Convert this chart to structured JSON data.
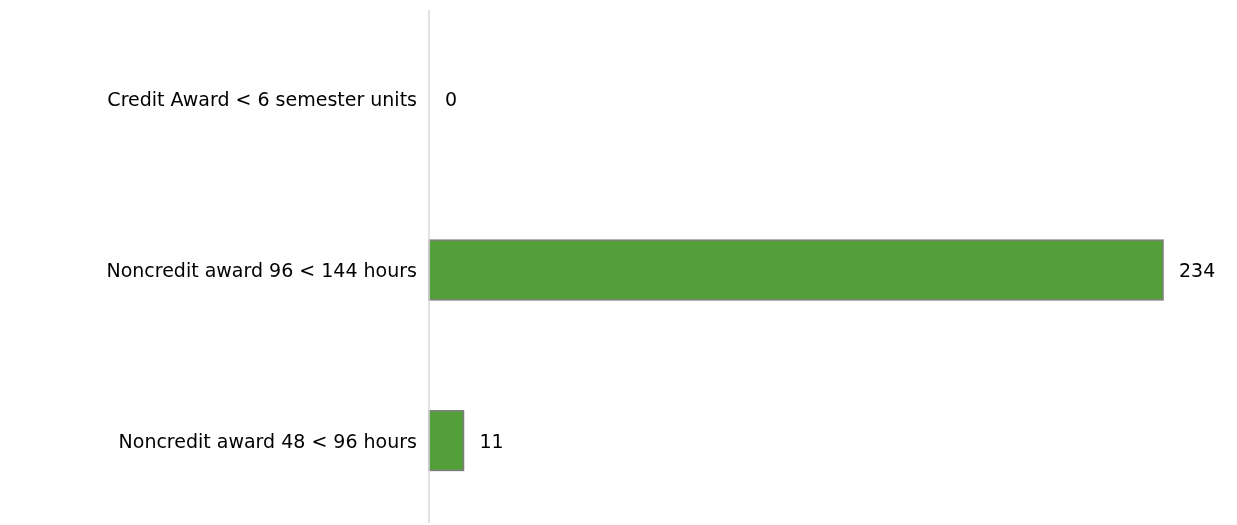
{
  "chart_data": {
    "type": "bar",
    "orientation": "horizontal",
    "categories": [
      "Credit Award < 6 semester units",
      "Noncredit award 96 < 144 hours",
      "Noncredit award 48 < 96 hours"
    ],
    "values": [
      0,
      234,
      11
    ],
    "color": "#539f3a",
    "data_labels": true
  }
}
